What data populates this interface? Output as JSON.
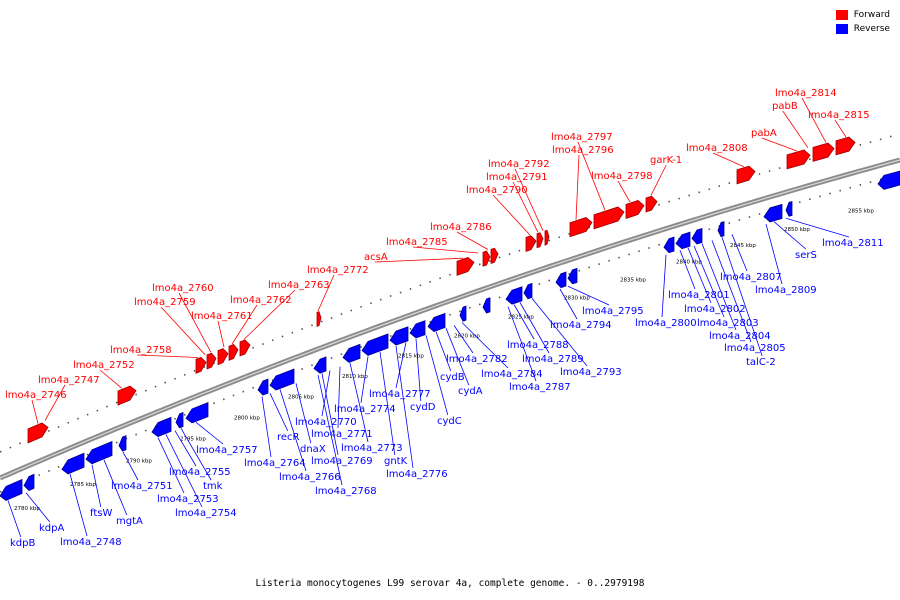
{
  "legend": {
    "forward": {
      "label": "Forward",
      "color": "#ff0000"
    },
    "reverse": {
      "label": "Reverse",
      "color": "#0000ff"
    }
  },
  "caption": "Listeria monocytogenes L99 serovar 4a, complete genome. - 0..2979198",
  "ticks": [
    "2780 kbp",
    "2785 kbp",
    "2790 kbp",
    "2795 kbp",
    "2800 kbp",
    "2805 kbp",
    "2810 kbp",
    "2815 kbp",
    "2820 kbp",
    "2825 kbp",
    "2830 kbp",
    "2835 kbp",
    "2840 kbp",
    "2845 kbp",
    "2850 kbp",
    "2855 kbp"
  ],
  "forward_labels": [
    "lmo4a_2746",
    "lmo4a_2747",
    "lmo4a_2752",
    "lmo4a_2758",
    "lmo4a_2759",
    "lmo4a_2760",
    "lmo4a_2761",
    "lmo4a_2762",
    "lmo4a_2763",
    "lmo4a_2772",
    "acsA",
    "lmo4a_2785",
    "lmo4a_2786",
    "lmo4a_2790",
    "lmo4a_2791",
    "lmo4a_2792",
    "lmo4a_2796",
    "lmo4a_2797",
    "lmo4a_2798",
    "garK-1",
    "lmo4a_2808",
    "pabA",
    "pabB",
    "lmo4a_2814",
    "lmo4a_2815"
  ],
  "reverse_labels": [
    "kdpB",
    "kdpA",
    "lmo4a_2748",
    "ftsW",
    "mgtA",
    "lmo4a_2751",
    "lmo4a_2753",
    "lmo4a_2754",
    "lmo4a_2755",
    "tmk",
    "lmo4a_2757",
    "lmo4a_2764",
    "recR",
    "lmo4a_2766",
    "dnaX",
    "lmo4a_2768",
    "lmo4a_2769",
    "lmo4a_2770",
    "lmo4a_2771",
    "lmo4a_2773",
    "lmo4a_2774",
    "gntK",
    "lmo4a_2776",
    "lmo4a_2777",
    "cydD",
    "cydC",
    "cydB",
    "cydA",
    "lmo4a_2782",
    "lmo4a_2784",
    "lmo4a_2787",
    "lmo4a_2788",
    "lmo4a_2789",
    "lmo4a_2793",
    "lmo4a_2794",
    "lmo4a_2795",
    "lmo4a_2800",
    "lmo4a_2801",
    "lmo4a_2802",
    "lmo4a_2803",
    "lmo4a_2804",
    "lmo4a_2805",
    "talC-2",
    "lmo4a_2807",
    "lmo4a_2809",
    "serS",
    "lmo4a_2811"
  ]
}
